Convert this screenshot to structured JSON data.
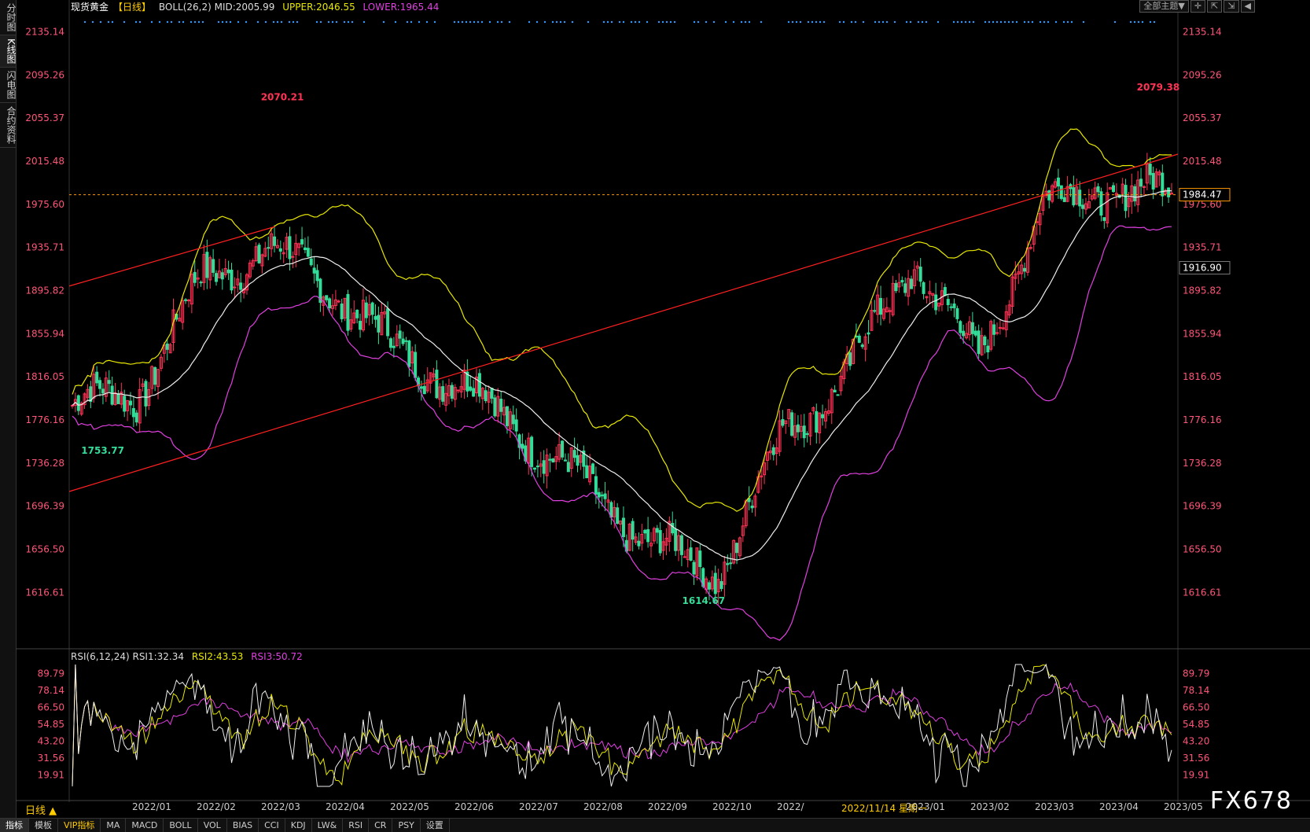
{
  "sidebar": {
    "tabs": [
      {
        "label": "分时图",
        "active": false
      },
      {
        "label": "K线图",
        "active": true
      },
      {
        "label": "闪电图",
        "active": false
      },
      {
        "label": "合约资料",
        "active": false
      }
    ]
  },
  "topbar": {
    "title": "现货黄金",
    "period_bracket": "【日线】",
    "boll": "BOLL(26,2) MID:2005.99",
    "upper": "UPPER:2046.55",
    "lower": "LOWER:1965.44",
    "theme_button": "全部主题▼"
  },
  "rsi_bar": {
    "label": "RSI(6,12,24) RSI1:32.34",
    "rsi2": "RSI2:43.53",
    "rsi3": "RSI3:50.72"
  },
  "period_label": "日线 ▲",
  "watermark": "FX678",
  "bottom_tabs": [
    "指标",
    "模板",
    "VIP指标",
    "MA",
    "MACD",
    "BOLL",
    "VOL",
    "BIAS",
    "CCI",
    "KDJ",
    "LW&",
    "RSI",
    "CR",
    "PSY",
    "设置"
  ],
  "colors": {
    "up": "#ff3355",
    "down": "#33dd99",
    "upper": "#e8e800",
    "mid": "#eeeeee",
    "lower": "#e040e0",
    "trend": "#ff2020",
    "price_line": "#ff9900",
    "axis_text": "#ff5577",
    "rsi_axis_text": "#ff5577"
  },
  "chart_data": {
    "type": "candlestick",
    "price_axis": {
      "ticks": [
        "2135.14",
        "2095.26",
        "2055.37",
        "2015.48",
        "1975.60",
        "1935.71",
        "1895.82",
        "1855.94",
        "1816.05",
        "1776.16",
        "1736.28",
        "1696.39",
        "1656.50",
        "1616.61"
      ],
      "ylim": [
        1590,
        2150
      ]
    },
    "current_price": "1984.47",
    "crosshair_price": "1916.90",
    "annotations": [
      {
        "label": "2070.21",
        "x_month": "2022/03"
      },
      {
        "label": "2079.38",
        "x_month": "2023/05"
      },
      {
        "label": "1753.77",
        "x_month": "2021/12"
      },
      {
        "label": "1614.67",
        "x_month": "2022/09"
      }
    ],
    "x_labels": [
      "2022/01",
      "2022/02",
      "2022/03",
      "2022/04",
      "2022/05",
      "2022/06",
      "2022/07",
      "2022/08",
      "2022/09",
      "2022/10",
      "2022/",
      "2022/11/14 星期一",
      "2023/01",
      "2023/02",
      "2023/03",
      "2023/04",
      "2023/05"
    ],
    "selected_date": "2022/11/14 星期一",
    "monthly_closes": [
      {
        "month": "2021/12",
        "value": 1790
      },
      {
        "month": "2022/01",
        "value": 1800
      },
      {
        "month": "2022/02",
        "value": 1905
      },
      {
        "month": "2022/03",
        "value": 1935
      },
      {
        "month": "2022/04",
        "value": 1900
      },
      {
        "month": "2022/05",
        "value": 1840
      },
      {
        "month": "2022/06",
        "value": 1810
      },
      {
        "month": "2022/07",
        "value": 1765
      },
      {
        "month": "2022/08",
        "value": 1710
      },
      {
        "month": "2022/09",
        "value": 1660
      },
      {
        "month": "2022/10",
        "value": 1635
      },
      {
        "month": "2022/11",
        "value": 1765
      },
      {
        "month": "2022/12",
        "value": 1820
      },
      {
        "month": "2023/01",
        "value": 1925
      },
      {
        "month": "2023/02",
        "value": 1830
      },
      {
        "month": "2023/03",
        "value": 1975
      },
      {
        "month": "2023/04",
        "value": 1990
      },
      {
        "month": "2023/05",
        "value": 1985
      }
    ],
    "rsi_axis": {
      "ticks": [
        "89.79",
        "78.14",
        "66.50",
        "54.85",
        "43.20",
        "31.56",
        "19.91"
      ],
      "ylim": [
        12,
        96
      ]
    }
  }
}
